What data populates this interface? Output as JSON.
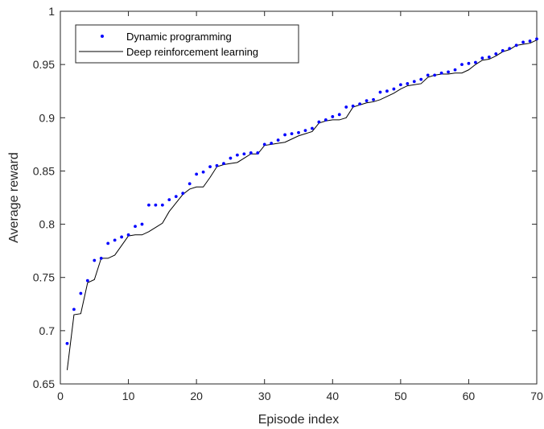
{
  "chart_data": {
    "type": "line",
    "xlabel": "Episode index",
    "ylabel": "Average reward",
    "xlim": [
      0,
      70
    ],
    "ylim": [
      0.65,
      1
    ],
    "xticks": [
      0,
      10,
      20,
      30,
      40,
      50,
      60,
      70
    ],
    "yticks": [
      0.65,
      0.7,
      0.75,
      0.8,
      0.85,
      0.9,
      0.95,
      1
    ],
    "ytick_labels": [
      "0.65",
      "0.7",
      "0.75",
      "0.8",
      "0.85",
      "0.9",
      "0.95",
      "1"
    ],
    "grid": false,
    "legend_position": "top-left",
    "series": [
      {
        "name": "Dynamic programming",
        "style": "dots",
        "color": "#0000ff",
        "x": [
          1,
          2,
          3,
          4,
          5,
          6,
          7,
          8,
          9,
          10,
          11,
          12,
          13,
          14,
          15,
          16,
          17,
          18,
          19,
          20,
          21,
          22,
          23,
          24,
          25,
          26,
          27,
          28,
          29,
          30,
          31,
          32,
          33,
          34,
          35,
          36,
          37,
          38,
          39,
          40,
          41,
          42,
          43,
          44,
          45,
          46,
          47,
          48,
          49,
          50,
          51,
          52,
          53,
          54,
          55,
          56,
          57,
          58,
          59,
          60,
          61,
          62,
          63,
          64,
          65,
          66,
          67,
          68,
          69,
          70
        ],
        "values": [
          0.688,
          0.72,
          0.735,
          0.747,
          0.766,
          0.768,
          0.782,
          0.785,
          0.788,
          0.79,
          0.798,
          0.8,
          0.818,
          0.818,
          0.818,
          0.823,
          0.826,
          0.829,
          0.838,
          0.847,
          0.849,
          0.854,
          0.855,
          0.857,
          0.862,
          0.865,
          0.866,
          0.867,
          0.867,
          0.875,
          0.876,
          0.879,
          0.884,
          0.885,
          0.886,
          0.888,
          0.89,
          0.896,
          0.898,
          0.901,
          0.903,
          0.91,
          0.911,
          0.913,
          0.916,
          0.917,
          0.924,
          0.925,
          0.927,
          0.931,
          0.932,
          0.934,
          0.936,
          0.94,
          0.94,
          0.942,
          0.943,
          0.945,
          0.95,
          0.951,
          0.952,
          0.956,
          0.957,
          0.96,
          0.963,
          0.965,
          0.968,
          0.971,
          0.972,
          0.974
        ]
      },
      {
        "name": "Deep reinforcement learning",
        "style": "line",
        "color": "#000000",
        "x": [
          1,
          2,
          3,
          4,
          5,
          6,
          7,
          8,
          9,
          10,
          11,
          12,
          13,
          14,
          15,
          16,
          17,
          18,
          19,
          20,
          21,
          22,
          23,
          24,
          25,
          26,
          27,
          28,
          29,
          30,
          31,
          32,
          33,
          34,
          35,
          36,
          37,
          38,
          39,
          40,
          41,
          42,
          43,
          44,
          45,
          46,
          47,
          48,
          49,
          50,
          51,
          52,
          53,
          54,
          55,
          56,
          57,
          58,
          59,
          60,
          61,
          62,
          63,
          64,
          65,
          66,
          67,
          68,
          69,
          70
        ],
        "values": [
          0.663,
          0.715,
          0.716,
          0.745,
          0.748,
          0.768,
          0.768,
          0.771,
          0.78,
          0.789,
          0.79,
          0.79,
          0.793,
          0.797,
          0.801,
          0.812,
          0.82,
          0.828,
          0.833,
          0.835,
          0.835,
          0.844,
          0.854,
          0.856,
          0.857,
          0.858,
          0.862,
          0.866,
          0.866,
          0.874,
          0.875,
          0.876,
          0.877,
          0.88,
          0.883,
          0.885,
          0.887,
          0.895,
          0.897,
          0.898,
          0.898,
          0.9,
          0.91,
          0.912,
          0.914,
          0.915,
          0.917,
          0.92,
          0.923,
          0.927,
          0.93,
          0.931,
          0.932,
          0.938,
          0.94,
          0.941,
          0.941,
          0.942,
          0.942,
          0.945,
          0.95,
          0.954,
          0.955,
          0.958,
          0.962,
          0.964,
          0.968,
          0.969,
          0.97,
          0.973
        ]
      }
    ]
  }
}
